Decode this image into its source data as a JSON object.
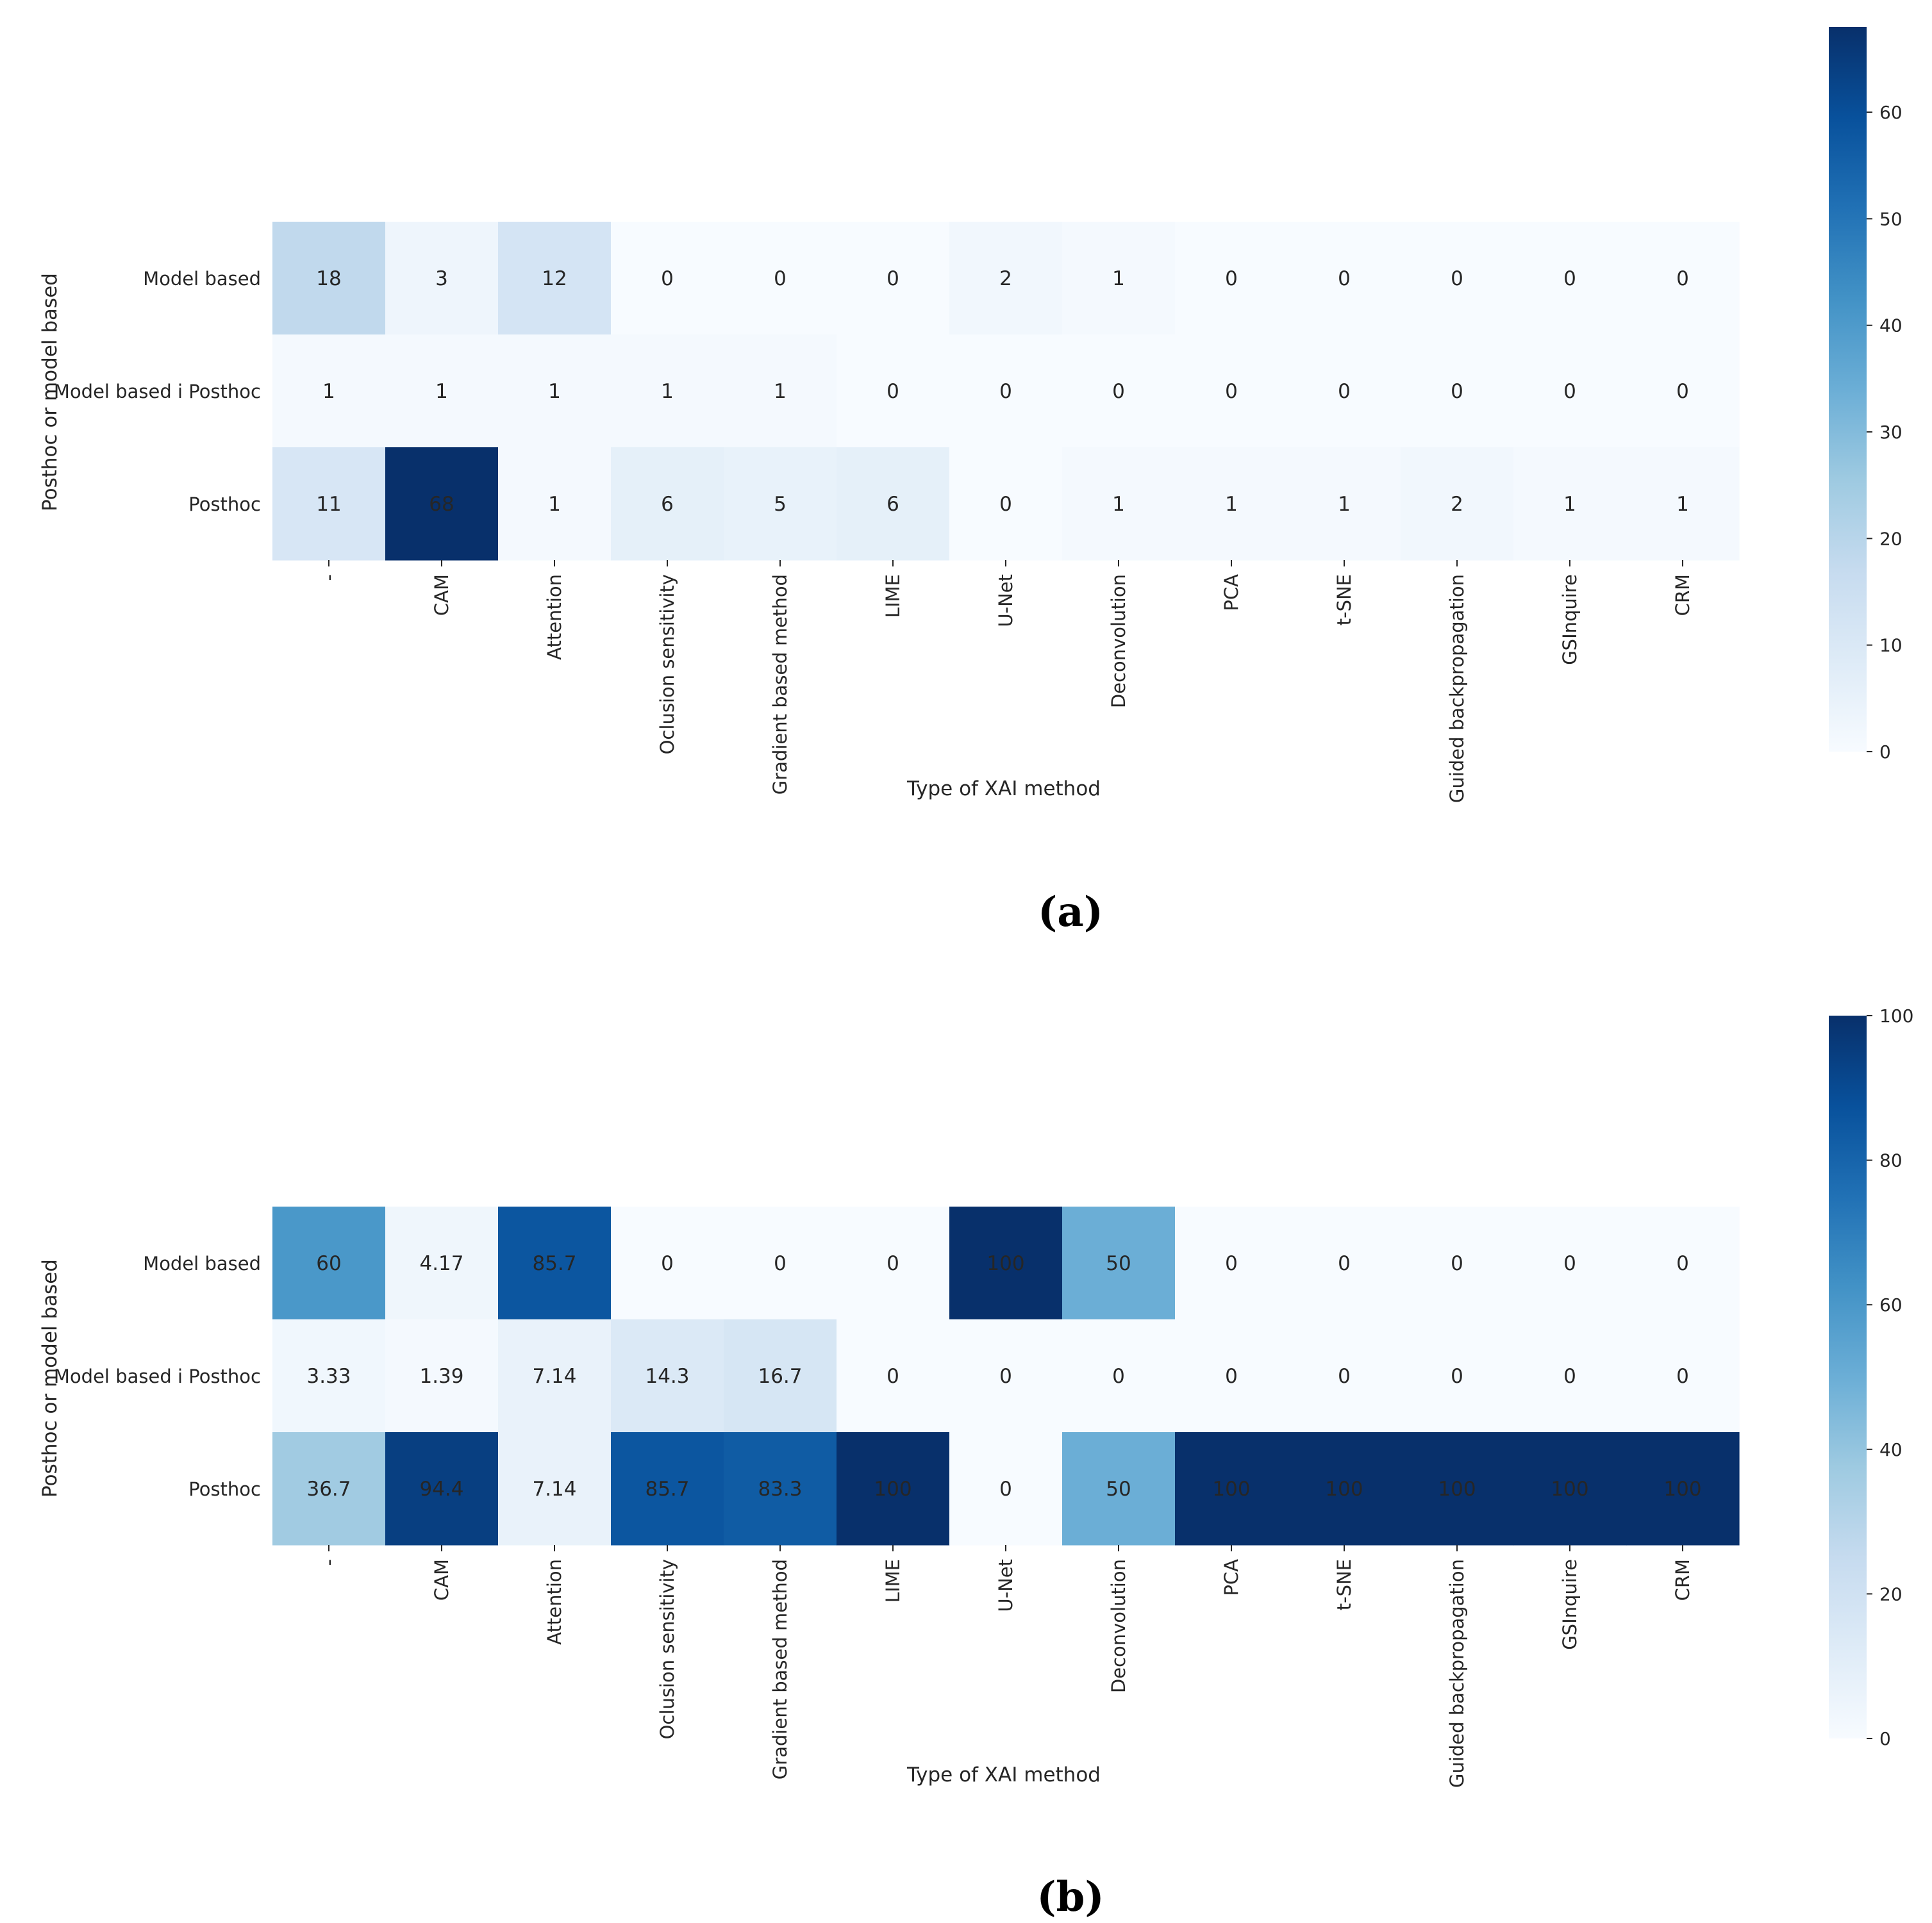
{
  "chart_data": [
    {
      "type": "heatmap",
      "panel_label": "(a)",
      "xlabel": "Type of XAI method",
      "ylabel": "Posthoc or model based",
      "rows": [
        "Model based",
        "Model based i Posthoc",
        "Posthoc"
      ],
      "columns": [
        "-",
        "CAM",
        "Attention",
        "Oclusion sensitivity",
        "Gradient based method",
        "LIME",
        "U-Net",
        "Deconvolution",
        "PCA",
        "t-SNE",
        "Guided backpropagation",
        "GSInquire",
        "CRM"
      ],
      "values": [
        [
          18,
          3,
          12,
          0,
          0,
          0,
          2,
          1,
          0,
          0,
          0,
          0,
          0
        ],
        [
          1,
          1,
          1,
          1,
          1,
          0,
          0,
          0,
          0,
          0,
          0,
          0,
          0
        ],
        [
          11,
          68,
          1,
          6,
          5,
          6,
          0,
          1,
          1,
          1,
          2,
          1,
          1
        ]
      ],
      "cell_labels": [
        [
          "18",
          "3",
          "12",
          "0",
          "0",
          "0",
          "2",
          "1",
          "0",
          "0",
          "0",
          "0",
          "0"
        ],
        [
          "1",
          "1",
          "1",
          "1",
          "1",
          "0",
          "0",
          "0",
          "0",
          "0",
          "0",
          "0",
          "0"
        ],
        [
          "11",
          "68",
          "1",
          "6",
          "5",
          "6",
          "0",
          "1",
          "1",
          "1",
          "2",
          "1",
          "1"
        ]
      ],
      "colormap": "Blues",
      "colorbar": {
        "vmin": 0,
        "vmax": 68,
        "ticks": [
          0,
          10,
          20,
          30,
          40,
          50,
          60
        ],
        "tick_labels": [
          "0",
          "10",
          "20",
          "30",
          "40",
          "50",
          "60"
        ]
      }
    },
    {
      "type": "heatmap",
      "panel_label": "(b)",
      "xlabel": "Type of XAI method",
      "ylabel": "Posthoc or model based",
      "rows": [
        "Model based",
        "Model based i Posthoc",
        "Posthoc"
      ],
      "columns": [
        "-",
        "CAM",
        "Attention",
        "Oclusion sensitivity",
        "Gradient based method",
        "LIME",
        "U-Net",
        "Deconvolution",
        "PCA",
        "t-SNE",
        "Guided backpropagation",
        "GSInquire",
        "CRM"
      ],
      "values": [
        [
          60,
          4.17,
          85.7,
          0,
          0,
          0,
          100,
          50,
          0,
          0,
          0,
          0,
          0
        ],
        [
          3.33,
          1.39,
          7.14,
          14.3,
          16.7,
          0,
          0,
          0,
          0,
          0,
          0,
          0,
          0
        ],
        [
          36.7,
          94.4,
          7.14,
          85.7,
          83.3,
          100,
          0,
          50,
          100,
          100,
          100,
          100,
          100
        ]
      ],
      "cell_labels": [
        [
          "60",
          "4.17",
          "85.7",
          "0",
          "0",
          "0",
          "100",
          "50",
          "0",
          "0",
          "0",
          "0",
          "0"
        ],
        [
          "3.33",
          "1.39",
          "7.14",
          "14.3",
          "16.7",
          "0",
          "0",
          "0",
          "0",
          "0",
          "0",
          "0",
          "0"
        ],
        [
          "36.7",
          "94.4",
          "7.14",
          "85.7",
          "83.3",
          "100",
          "0",
          "50",
          "100",
          "100",
          "100",
          "100",
          "100"
        ]
      ],
      "colormap": "Blues",
      "colorbar": {
        "vmin": 0,
        "vmax": 100,
        "ticks": [
          0,
          20,
          40,
          60,
          80,
          100
        ],
        "tick_labels": [
          "0",
          "20",
          "40",
          "60",
          "80",
          "100"
        ]
      }
    }
  ]
}
